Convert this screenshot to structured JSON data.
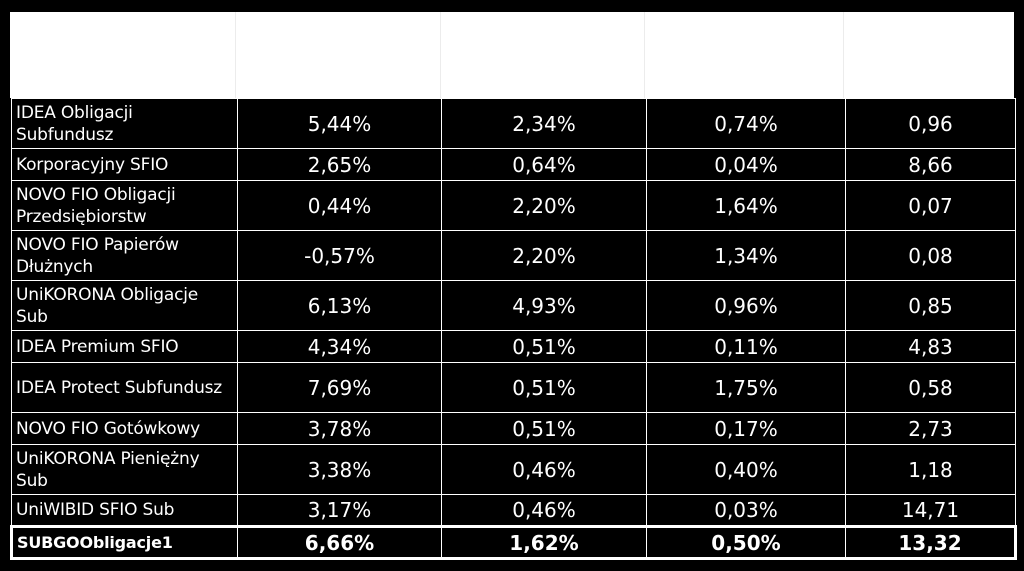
{
  "table": {
    "rows": [
      {
        "name": "IDEA Obligacji Subfundusz",
        "v1": "5,44%",
        "v2": "2,34%",
        "v3": "0,74%",
        "v4": "0,96",
        "lines": 2
      },
      {
        "name": "Korporacyjny SFIO",
        "v1": "2,65%",
        "v2": "0,64%",
        "v3": "0,04%",
        "v4": "8,66",
        "lines": 1
      },
      {
        "name": "NOVO FIO Obligacji Przedsiębiorstw",
        "v1": "0,44%",
        "v2": "2,20%",
        "v3": "1,64%",
        "v4": "0,07",
        "lines": 2
      },
      {
        "name": "NOVO FIO Papierów Dłużnych",
        "v1": "-0,57%",
        "v2": "2,20%",
        "v3": "1,34%",
        "v4": "0,08",
        "lines": 2
      },
      {
        "name": "UniKORONA Obligacje Sub",
        "v1": "6,13%",
        "v2": "4,93%",
        "v3": "0,96%",
        "v4": "0,85",
        "lines": 2
      },
      {
        "name": "IDEA Premium SFIO",
        "v1": "4,34%",
        "v2": "0,51%",
        "v3": "0,11%",
        "v4": "4,83",
        "lines": 1
      },
      {
        "name": "IDEA Protect Subfundusz",
        "v1": "7,69%",
        "v2": "0,51%",
        "v3": "1,75%",
        "v4": "0,58",
        "lines": 2
      },
      {
        "name": "NOVO FIO Gotówkowy",
        "v1": "3,78%",
        "v2": "0,51%",
        "v3": "0,17%",
        "v4": "2,73",
        "lines": 1
      },
      {
        "name": "UniKORONA Pieniężny Sub",
        "v1": "3,38%",
        "v2": "0,46%",
        "v3": "0,40%",
        "v4": "1,18",
        "lines": 2
      },
      {
        "name": "UniWIBID SFIO Sub",
        "v1": "3,17%",
        "v2": "0,46%",
        "v3": "0,03%",
        "v4": "14,71",
        "lines": 1
      }
    ],
    "summary": {
      "name": "SUBGOObligacje1",
      "v1": "6,66%",
      "v2": "1,62%",
      "v3": "0,50%",
      "v4": "13,32"
    }
  },
  "colors": {
    "background": "#000000",
    "text": "#ffffff",
    "header_band": "#ffffff"
  }
}
